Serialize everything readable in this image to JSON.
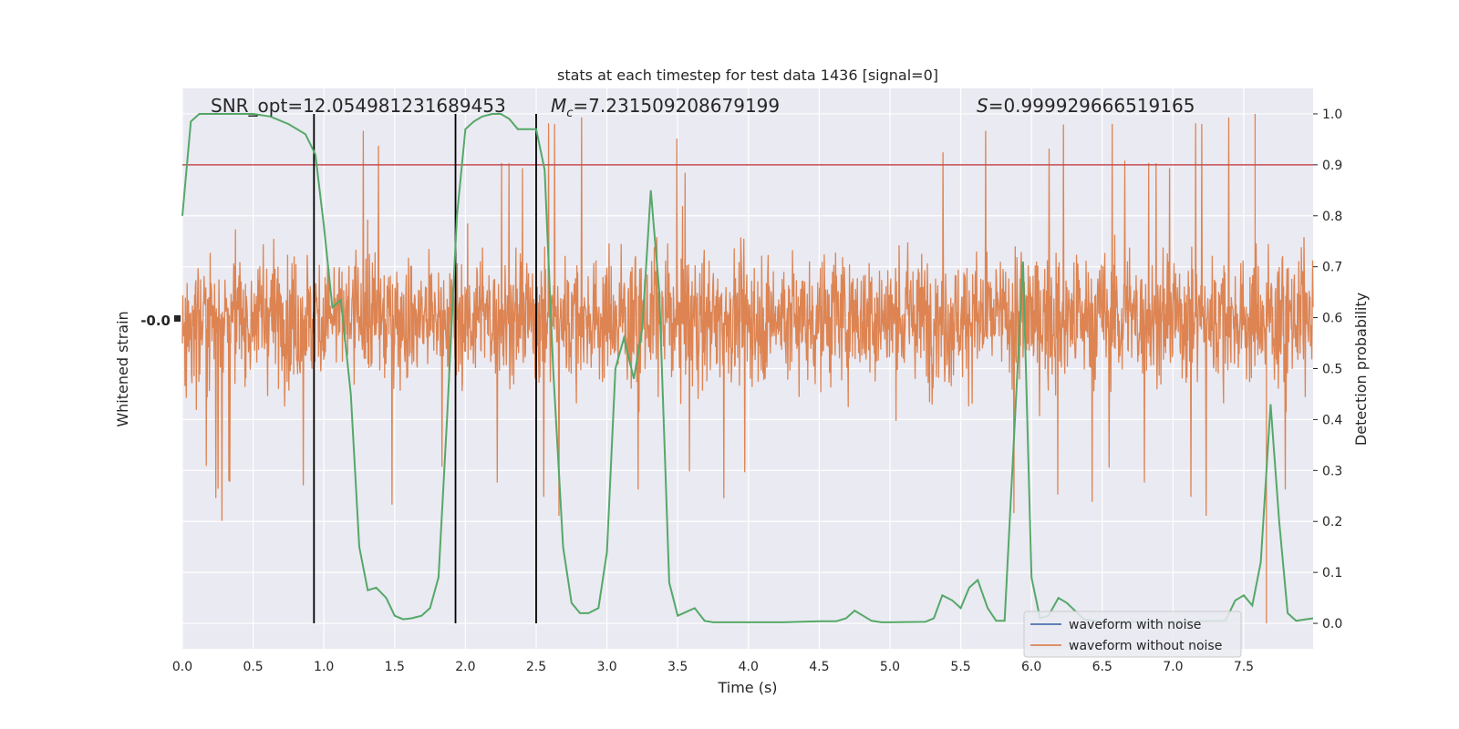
{
  "chart_data": {
    "type": "line",
    "title": "stats at each timestep for test data 1436 [signal=0]",
    "xlabel": "Time (s)",
    "ylabel_left": "Whitened strain",
    "ylabel_right": "Detection probability",
    "xlim": [
      0.0,
      7.99
    ],
    "ylim_right": [
      -0.05,
      1.05
    ],
    "grid": true,
    "x_ticks": [
      "0.0",
      "0.5",
      "1.0",
      "1.5",
      "2.0",
      "2.5",
      "3.0",
      "3.5",
      "4.0",
      "4.5",
      "5.0",
      "5.5",
      "6.0",
      "6.5",
      "7.0",
      "7.5"
    ],
    "y_right_ticks": [
      "0.0",
      "0.1",
      "0.2",
      "0.3",
      "0.4",
      "0.5",
      "0.6",
      "0.7",
      "0.8",
      "0.9",
      "1.0"
    ],
    "left_axis_clutter_label": "-0.0",
    "annotations": {
      "snr": "SNR_opt=12.054981231689453",
      "mc_sym": "M",
      "mc_sub": "c",
      "mc_val": "=7.231509208679199",
      "s_sym": "S",
      "s_val": "=0.999929666519165"
    },
    "threshold": 0.9,
    "vertical_lines": [
      0.93,
      1.93,
      2.5
    ],
    "probability_series": {
      "x": [
        0.0,
        0.06,
        0.12,
        0.25,
        0.37,
        0.5,
        0.62,
        0.75,
        0.87,
        0.94,
        1.0,
        1.06,
        1.12,
        1.19,
        1.25,
        1.31,
        1.37,
        1.44,
        1.5,
        1.56,
        1.62,
        1.69,
        1.75,
        1.81,
        1.87,
        1.94,
        2.0,
        2.06,
        2.12,
        2.19,
        2.25,
        2.31,
        2.37,
        2.5,
        2.56,
        2.62,
        2.69,
        2.75,
        2.81,
        2.87,
        2.94,
        3.0,
        3.06,
        3.12,
        3.19,
        3.25,
        3.31,
        3.37,
        3.44,
        3.5,
        3.62,
        3.69,
        3.75,
        4.0,
        4.25,
        4.5,
        4.62,
        4.69,
        4.75,
        4.81,
        4.87,
        4.94,
        5.0,
        5.25,
        5.31,
        5.37,
        5.44,
        5.5,
        5.56,
        5.62,
        5.69,
        5.75,
        5.81,
        5.94,
        6.0,
        6.06,
        6.12,
        6.19,
        6.25,
        6.37,
        6.5,
        7.0,
        7.37,
        7.44,
        7.5,
        7.56,
        7.62,
        7.69,
        7.75,
        7.81,
        7.87,
        7.94,
        7.99
      ],
      "y": [
        0.8,
        0.985,
        1.0,
        1.0,
        1.0,
        1.0,
        0.995,
        0.98,
        0.96,
        0.92,
        0.78,
        0.62,
        0.635,
        0.45,
        0.15,
        0.065,
        0.07,
        0.05,
        0.015,
        0.008,
        0.01,
        0.015,
        0.03,
        0.09,
        0.4,
        0.8,
        0.97,
        0.985,
        0.995,
        1.0,
        1.0,
        0.99,
        0.97,
        0.97,
        0.89,
        0.5,
        0.15,
        0.04,
        0.02,
        0.02,
        0.03,
        0.14,
        0.5,
        0.56,
        0.48,
        0.58,
        0.85,
        0.65,
        0.08,
        0.015,
        0.03,
        0.005,
        0.002,
        0.002,
        0.002,
        0.004,
        0.004,
        0.01,
        0.025,
        0.015,
        0.005,
        0.002,
        0.002,
        0.003,
        0.01,
        0.055,
        0.045,
        0.03,
        0.07,
        0.085,
        0.03,
        0.005,
        0.005,
        0.71,
        0.09,
        0.01,
        0.015,
        0.05,
        0.04,
        0.008,
        0.003,
        0.003,
        0.005,
        0.045,
        0.055,
        0.035,
        0.12,
        0.43,
        0.2,
        0.02,
        0.005,
        0.008,
        0.01
      ]
    },
    "strain_series": {
      "band_center": 0.6,
      "band_half_width": 0.1,
      "typical_envelope": [
        0.4,
        0.8
      ],
      "peak_max": 1.0,
      "peak_min": 0.0
    },
    "legend": {
      "position": "lower-right",
      "entries": [
        {
          "label": "waveform with noise",
          "color": "#4c72b0"
        },
        {
          "label": "waveform without noise",
          "color": "#dd8452"
        }
      ]
    },
    "colors": {
      "background": "#eaeaf2",
      "grid": "#ffffff",
      "strain": "#dd8452",
      "probability": "#55a868",
      "threshold": "#c44e52",
      "vertical_line": "#000000",
      "legend_noise": "#4c72b0"
    }
  }
}
